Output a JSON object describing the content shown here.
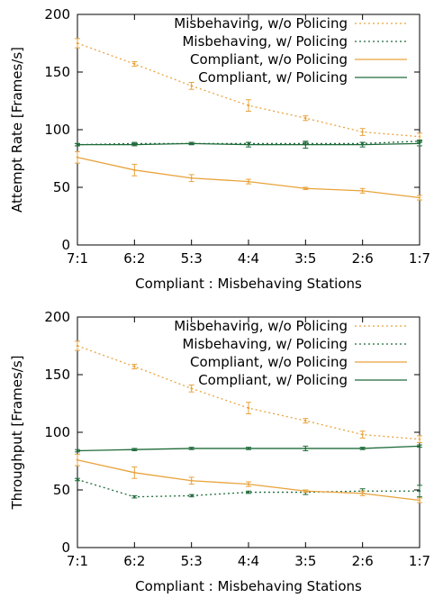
{
  "chart_data": [
    {
      "type": "line",
      "xlabel": "Compliant : Misbehaving Stations",
      "ylabel": "Attempt Rate [Frames/s]",
      "ylim": [
        0,
        200
      ],
      "yticks": [
        0,
        50,
        100,
        150,
        200
      ],
      "categories": [
        "7:1",
        "6:2",
        "5:3",
        "4:4",
        "3:5",
        "2:6",
        "1:7"
      ],
      "legend_position": "top-right",
      "grid": false,
      "series": [
        {
          "name": "Misbehaving, w/o Policing",
          "color": "#e8a33c",
          "style": "dotted",
          "values": [
            175,
            157,
            138,
            121,
            110,
            98,
            94
          ],
          "errors": [
            4,
            2,
            3,
            5,
            2,
            3,
            3
          ]
        },
        {
          "name": "Misbehaving, w/ Policing",
          "color": "#1f6b3a",
          "style": "dotted",
          "values": [
            87,
            88,
            88,
            88,
            88,
            88,
            90
          ],
          "errors": [
            1,
            1,
            1,
            1,
            1,
            1,
            1
          ]
        },
        {
          "name": "Compliant, w/o Policing",
          "color": "#e8a33c",
          "style": "solid",
          "values": [
            76,
            65,
            58,
            55,
            49,
            47,
            41
          ],
          "errors": [
            5,
            5,
            3,
            2,
            1,
            2,
            2
          ]
        },
        {
          "name": "Compliant, w/ Policing",
          "color": "#1f6b3a",
          "style": "solid",
          "values": [
            87,
            87,
            88,
            87,
            87,
            87,
            88
          ],
          "errors": [
            1,
            1,
            1,
            2,
            3,
            2,
            2
          ]
        }
      ]
    },
    {
      "type": "line",
      "xlabel": "Compliant : Misbehaving Stations",
      "ylabel": "Throughput [Frames/s]",
      "ylim": [
        0,
        200
      ],
      "yticks": [
        0,
        50,
        100,
        150,
        200
      ],
      "categories": [
        "7:1",
        "6:2",
        "5:3",
        "4:4",
        "3:5",
        "2:6",
        "1:7"
      ],
      "legend_position": "top-right",
      "grid": false,
      "series": [
        {
          "name": "Misbehaving, w/o Policing",
          "color": "#e8a33c",
          "style": "dotted",
          "values": [
            175,
            157,
            138,
            121,
            110,
            98,
            94
          ],
          "errors": [
            4,
            2,
            3,
            5,
            2,
            3,
            3
          ]
        },
        {
          "name": "Misbehaving, w/ Policing",
          "color": "#1f6b3a",
          "style": "dotted",
          "values": [
            59,
            44,
            45,
            48,
            48,
            49,
            49
          ],
          "errors": [
            1,
            1,
            1,
            1,
            2,
            2,
            5
          ]
        },
        {
          "name": "Compliant, w/o Policing",
          "color": "#e8a33c",
          "style": "solid",
          "values": [
            76,
            65,
            58,
            55,
            49,
            47,
            41
          ],
          "errors": [
            5,
            5,
            3,
            2,
            1,
            2,
            2
          ]
        },
        {
          "name": "Compliant, w/ Policing",
          "color": "#1f6b3a",
          "style": "solid",
          "values": [
            84,
            85,
            86,
            86,
            86,
            86,
            88
          ],
          "errors": [
            1,
            1,
            1,
            1,
            2,
            1,
            1
          ]
        }
      ]
    }
  ]
}
